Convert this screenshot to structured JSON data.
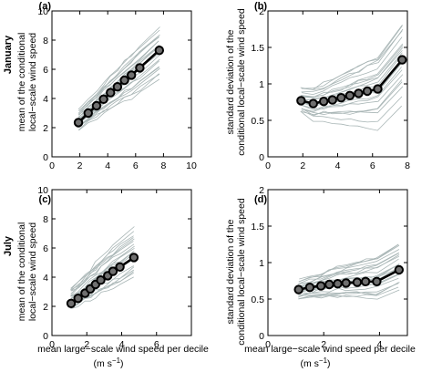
{
  "figure": {
    "row_labels": [
      "January",
      "July"
    ],
    "xlabel_line1": "mean large−scale wind speed per decile",
    "xlabel_unit": "(m s",
    "xlabel_unit_exp": "−1",
    "xlabel_unit_close": ")"
  },
  "colors": {
    "main_line": "#000000",
    "marker_fill": "#6f6f6f",
    "ensemble_lines": "#a9b6b6",
    "axes": "#000000"
  },
  "chart_data": [
    {
      "id": "a",
      "panel_label": "(a)",
      "type": "line",
      "ylabel": [
        "mean of the conditional",
        "local−scale wind speed"
      ],
      "xlim": [
        0,
        10
      ],
      "ylim": [
        0,
        10
      ],
      "xticks": [
        0,
        2,
        4,
        6,
        8,
        10
      ],
      "yticks": [
        0,
        2,
        4,
        6,
        8,
        10
      ],
      "grid": false,
      "series": [
        {
          "role": "mean",
          "x": [
            1.9,
            2.6,
            3.2,
            3.7,
            4.2,
            4.7,
            5.2,
            5.7,
            6.3,
            7.7
          ],
          "y": [
            2.35,
            3.0,
            3.5,
            3.95,
            4.4,
            4.8,
            5.25,
            5.6,
            6.1,
            7.3
          ]
        }
      ],
      "ensemble_count": 22,
      "ensemble_y_range_at_x_min": [
        1.8,
        3.2
      ],
      "ensemble_y_range_at_x_max": [
        5.6,
        8.8
      ]
    },
    {
      "id": "b",
      "panel_label": "(b)",
      "type": "line",
      "ylabel": [
        "standard deviation of the",
        "conditional local−scale wind speed"
      ],
      "xlim": [
        0,
        8
      ],
      "ylim": [
        0,
        2
      ],
      "xticks": [
        0,
        2,
        4,
        6,
        8
      ],
      "yticks": [
        0,
        0.5,
        1,
        1.5,
        2
      ],
      "grid": false,
      "series": [
        {
          "role": "mean",
          "x": [
            1.9,
            2.6,
            3.2,
            3.7,
            4.2,
            4.7,
            5.2,
            5.7,
            6.3,
            7.7
          ],
          "y": [
            0.77,
            0.73,
            0.76,
            0.78,
            0.81,
            0.84,
            0.87,
            0.9,
            0.93,
            1.33
          ]
        }
      ],
      "ensemble_count": 22,
      "ensemble_y_range_at_x_min": [
        0.6,
        0.95
      ],
      "ensemble_y_range_at_x_max": [
        0.85,
        1.8
      ]
    },
    {
      "id": "c",
      "panel_label": "(c)",
      "type": "line",
      "ylabel": [
        "mean of the conditional",
        "local−scale wind speed"
      ],
      "xlim": [
        0,
        8
      ],
      "ylim": [
        0,
        10
      ],
      "xticks": [
        0,
        2,
        4,
        6
      ],
      "yticks": [
        0,
        2,
        4,
        6,
        8,
        10
      ],
      "grid": false,
      "series": [
        {
          "role": "mean",
          "x": [
            1.1,
            1.5,
            1.9,
            2.2,
            2.5,
            2.8,
            3.2,
            3.5,
            3.9,
            4.7
          ],
          "y": [
            2.2,
            2.55,
            2.9,
            3.2,
            3.5,
            3.8,
            4.1,
            4.4,
            4.7,
            5.35
          ]
        }
      ],
      "ensemble_count": 22,
      "ensemble_y_range_at_x_min": [
        1.8,
        3.2
      ],
      "ensemble_y_range_at_x_max": [
        4.0,
        7.4
      ]
    },
    {
      "id": "d",
      "panel_label": "(d)",
      "type": "line",
      "ylabel": [
        "standard deviation of the",
        "conditional local−scale wind speed"
      ],
      "xlim": [
        0,
        5
      ],
      "ylim": [
        0,
        2
      ],
      "xticks": [
        0,
        2,
        4
      ],
      "yticks": [
        0,
        0.5,
        1,
        1.5,
        2
      ],
      "grid": false,
      "series": [
        {
          "role": "mean",
          "x": [
            1.1,
            1.5,
            1.9,
            2.2,
            2.5,
            2.8,
            3.2,
            3.5,
            3.9,
            4.7
          ],
          "y": [
            0.63,
            0.66,
            0.68,
            0.7,
            0.71,
            0.72,
            0.73,
            0.74,
            0.74,
            0.9
          ]
        }
      ],
      "ensemble_count": 22,
      "ensemble_y_range_at_x_min": [
        0.5,
        0.75
      ],
      "ensemble_y_range_at_x_max": [
        0.65,
        1.25
      ]
    }
  ]
}
